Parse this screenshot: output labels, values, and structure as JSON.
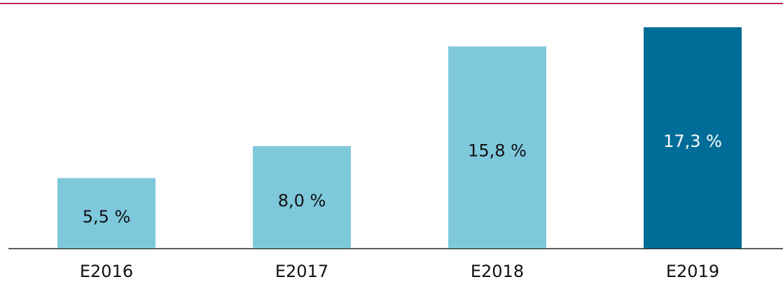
{
  "chart_data": {
    "type": "bar",
    "categories": [
      "E2016",
      "E2017",
      "E2018",
      "E2019"
    ],
    "values": [
      5.5,
      8.0,
      15.8,
      17.3
    ],
    "value_labels": [
      "5,5 %",
      "8,0 %",
      "15,8 %",
      "17,3 %"
    ],
    "colors": [
      "#7ec8dc",
      "#7ec8dc",
      "#7ec8dc",
      "#006d99"
    ],
    "label_colors": [
      "#111111",
      "#111111",
      "#111111",
      "#ffffff"
    ]
  }
}
